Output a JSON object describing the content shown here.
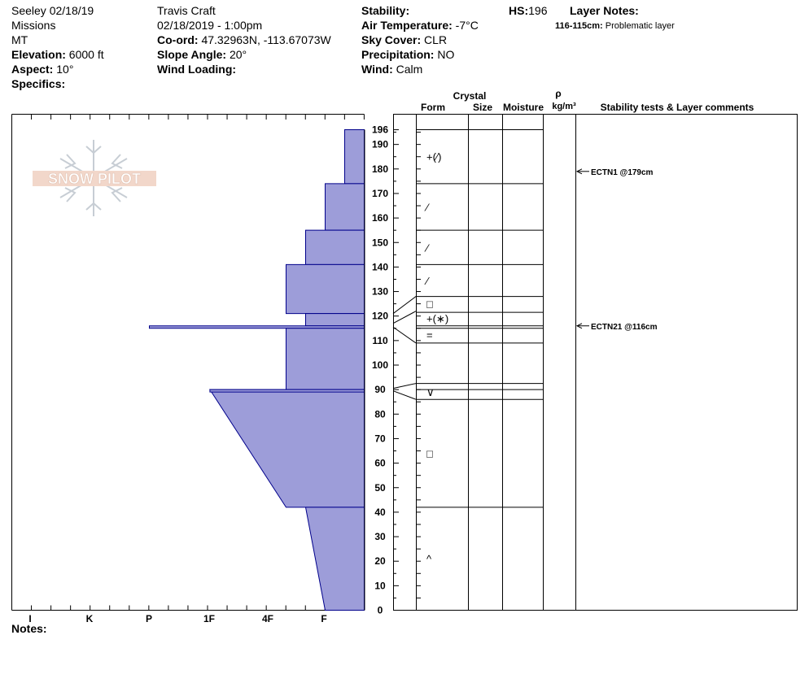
{
  "header": {
    "col1": {
      "location": "Seeley 02/18/19",
      "range": "Missions",
      "state": "MT",
      "elevation_label": "Elevation:",
      "elevation": "6000 ft",
      "aspect_label": "Aspect:",
      "aspect": "10°",
      "specifics_label": "Specifics:"
    },
    "col2": {
      "observer": "Travis  Craft",
      "datetime": "02/18/2019 - 1:00pm",
      "coord_label": "Co-ord:",
      "coord": "47.32963N, -113.67073W",
      "slope_label": "Slope Angle:",
      "slope": "20°",
      "wind_loading_label": "Wind Loading:"
    },
    "col3": {
      "stability_label": "Stability:",
      "air_temp_label": "Air Temperature:",
      "air_temp": "-7°C",
      "sky_label": "Sky Cover:",
      "sky": "CLR",
      "precip_label": "Precipitation:",
      "precip": "NO",
      "wind_label": "Wind:",
      "wind": "Calm"
    },
    "hs_label": "HS:",
    "hs": "196",
    "layer_notes_label": "Layer Notes:",
    "layer_note_range": "116-115cm:",
    "layer_note_text": "Problematic layer"
  },
  "logo_text": "SNOW PILOT",
  "notes_label": "Notes:",
  "table_headers": {
    "crystal": "Crystal",
    "form": "Form",
    "size": "Size",
    "moisture": "Moisture",
    "rho": "ρ",
    "density_unit": "kg/m³",
    "comments": "Stability tests & Layer comments"
  },
  "colors": {
    "fill": "#9d9dd9",
    "stroke": "#00008b"
  },
  "chart_data": {
    "type": "area",
    "title": "",
    "y_axis": {
      "range": [
        0,
        196
      ],
      "ticks": [
        0,
        10,
        20,
        30,
        40,
        50,
        60,
        70,
        80,
        90,
        100,
        110,
        120,
        130,
        140,
        150,
        160,
        170,
        180,
        190,
        196
      ]
    },
    "hardness_scale": [
      "I",
      "K",
      "P",
      "1F",
      "4F",
      "F"
    ],
    "hardness_profile": [
      {
        "bottom": 174,
        "top": 196,
        "hardness_bottom": 1,
        "hardness_top": 1
      },
      {
        "bottom": 155,
        "top": 174,
        "hardness_bottom": 2,
        "hardness_top": 2
      },
      {
        "bottom": 141,
        "top": 155,
        "hardness_bottom": 3,
        "hardness_top": 3
      },
      {
        "bottom": 121,
        "top": 141,
        "hardness_bottom": 4,
        "hardness_top": 4
      },
      {
        "bottom": 116,
        "top": 121,
        "hardness_bottom": 3,
        "hardness_top": 3
      },
      {
        "bottom": 115,
        "top": 116,
        "hardness_bottom": 11,
        "hardness_top": 11
      },
      {
        "bottom": 90,
        "top": 115,
        "hardness_bottom": 4,
        "hardness_top": 4
      },
      {
        "bottom": 42,
        "top": 90,
        "hardness_bottom": 4,
        "hardness_top": 7.9
      },
      {
        "bottom": 0,
        "top": 42,
        "hardness_bottom": 2,
        "hardness_top": 3
      },
      {
        "bottom": 89,
        "top": 90,
        "hardness_bottom": 7.9,
        "hardness_top": 7.9
      }
    ],
    "layers": [
      {
        "top": 196,
        "bottom": 174,
        "form": "+(⁄)"
      },
      {
        "top": 174,
        "bottom": 155,
        "form": "⁄"
      },
      {
        "top": 155,
        "bottom": 141,
        "form": "⁄"
      },
      {
        "top": 141,
        "bottom": 128,
        "form": "⁄"
      },
      {
        "top": 128,
        "bottom": 122,
        "form": "□"
      },
      {
        "top": 122,
        "bottom": 116,
        "form": "+(∗)"
      },
      {
        "top": 116,
        "bottom": 109,
        "form": "="
      },
      {
        "top": 109,
        "bottom": 92,
        "form": ""
      },
      {
        "top": 92,
        "bottom": 86,
        "form": "∨"
      },
      {
        "top": 86,
        "bottom": 42,
        "form": "□"
      },
      {
        "top": 42,
        "bottom": 0,
        "form": "^"
      }
    ],
    "stability_tests": [
      {
        "depth": 179,
        "label": "ECTN1 @179cm"
      },
      {
        "depth": 116,
        "label": "ECTN21 @116cm"
      }
    ]
  }
}
